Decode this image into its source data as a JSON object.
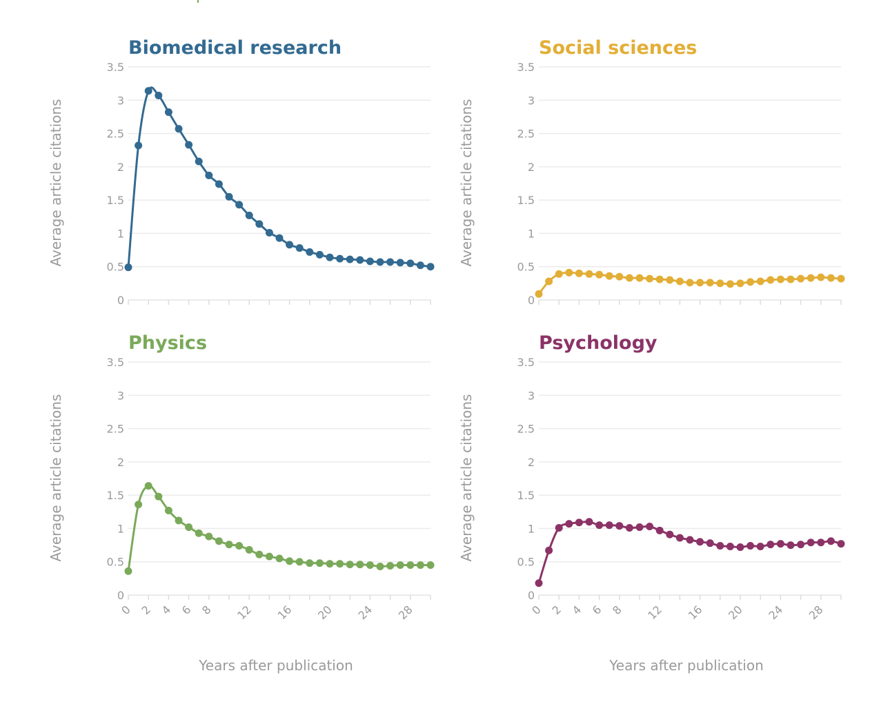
{
  "chart_data": [
    {
      "type": "line",
      "title": "Biomedical research",
      "color": "#336a91",
      "xlabel": "",
      "ylabel": "Average article citations",
      "ylim": [
        0,
        3.5
      ],
      "xlim": [
        0,
        30
      ],
      "y_ticks": [
        "0",
        "0.5",
        "1",
        "1.5",
        "2",
        "2.5",
        "3",
        "3.5"
      ],
      "x_ticks": [],
      "grid": "horizontal",
      "x": [
        0,
        1,
        2,
        3,
        4,
        5,
        6,
        7,
        8,
        9,
        10,
        11,
        12,
        13,
        14,
        15,
        16,
        17,
        18,
        19,
        20,
        21,
        22,
        23,
        24,
        25,
        26,
        27,
        28,
        29,
        30
      ],
      "y": [
        0.49,
        2.32,
        3.14,
        3.07,
        2.82,
        2.57,
        2.33,
        2.08,
        1.87,
        1.74,
        1.55,
        1.43,
        1.27,
        1.14,
        1.01,
        0.93,
        0.83,
        0.78,
        0.72,
        0.68,
        0.64,
        0.62,
        0.61,
        0.6,
        0.58,
        0.57,
        0.57,
        0.56,
        0.55,
        0.52,
        0.5
      ]
    },
    {
      "type": "line",
      "title": "Social sciences",
      "color": "#e2ae36",
      "xlabel": "",
      "ylabel": "Average article citations",
      "ylim": [
        0,
        3.5
      ],
      "xlim": [
        0,
        30
      ],
      "y_ticks": [
        "0",
        "0.5",
        "1",
        "1.5",
        "2",
        "2.5",
        "3",
        "3.5"
      ],
      "x_ticks": [],
      "grid": "horizontal",
      "x": [
        0,
        1,
        2,
        3,
        4,
        5,
        6,
        7,
        8,
        9,
        10,
        11,
        12,
        13,
        14,
        15,
        16,
        17,
        18,
        19,
        20,
        21,
        22,
        23,
        24,
        25,
        26,
        27,
        28,
        29,
        30
      ],
      "y": [
        0.09,
        0.28,
        0.39,
        0.41,
        0.4,
        0.39,
        0.38,
        0.36,
        0.35,
        0.33,
        0.33,
        0.32,
        0.31,
        0.3,
        0.28,
        0.26,
        0.26,
        0.26,
        0.25,
        0.24,
        0.25,
        0.27,
        0.28,
        0.3,
        0.31,
        0.31,
        0.32,
        0.33,
        0.34,
        0.33,
        0.32
      ]
    },
    {
      "type": "line",
      "title": "Physics",
      "color": "#7aa95a",
      "xlabel": "Years after publication",
      "ylabel": "Average article citations",
      "ylim": [
        0,
        3.5
      ],
      "xlim": [
        0,
        30
      ],
      "y_ticks": [
        "0",
        "0.5",
        "1",
        "1.5",
        "2",
        "2.5",
        "3",
        "3.5"
      ],
      "x_ticks": [
        "0",
        "2",
        "4",
        "6",
        "8",
        "12",
        "16",
        "20",
        "24",
        "28"
      ],
      "grid": "horizontal",
      "x": [
        0,
        1,
        2,
        3,
        4,
        5,
        6,
        7,
        8,
        9,
        10,
        11,
        12,
        13,
        14,
        15,
        16,
        17,
        18,
        19,
        20,
        21,
        22,
        23,
        24,
        25,
        26,
        27,
        28,
        29,
        30
      ],
      "y": [
        0.36,
        1.36,
        1.64,
        1.48,
        1.27,
        1.12,
        1.02,
        0.93,
        0.88,
        0.81,
        0.76,
        0.74,
        0.68,
        0.61,
        0.58,
        0.55,
        0.51,
        0.5,
        0.48,
        0.48,
        0.47,
        0.47,
        0.46,
        0.46,
        0.45,
        0.43,
        0.44,
        0.45,
        0.45,
        0.45,
        0.45
      ]
    },
    {
      "type": "line",
      "title": "Psychology",
      "color": "#8b3367",
      "xlabel": "Years after publication",
      "ylabel": "Average article citations",
      "ylim": [
        0,
        3.5
      ],
      "xlim": [
        0,
        30
      ],
      "y_ticks": [
        "0",
        "0.5",
        "1",
        "1.5",
        "2",
        "2.5",
        "3",
        "3.5"
      ],
      "x_ticks": [
        "0",
        "2",
        "4",
        "6",
        "8",
        "12",
        "16",
        "20",
        "24",
        "28"
      ],
      "grid": "horizontal",
      "x": [
        0,
        1,
        2,
        3,
        4,
        5,
        6,
        7,
        8,
        9,
        10,
        11,
        12,
        13,
        14,
        15,
        16,
        17,
        18,
        19,
        20,
        21,
        22,
        23,
        24,
        25,
        26,
        27,
        28,
        29,
        30
      ],
      "y": [
        0.18,
        0.67,
        1.01,
        1.07,
        1.09,
        1.1,
        1.05,
        1.05,
        1.04,
        1.01,
        1.02,
        1.03,
        0.97,
        0.91,
        0.86,
        0.83,
        0.8,
        0.78,
        0.74,
        0.73,
        0.72,
        0.74,
        0.73,
        0.76,
        0.77,
        0.75,
        0.76,
        0.79,
        0.79,
        0.81,
        0.77
      ]
    }
  ]
}
